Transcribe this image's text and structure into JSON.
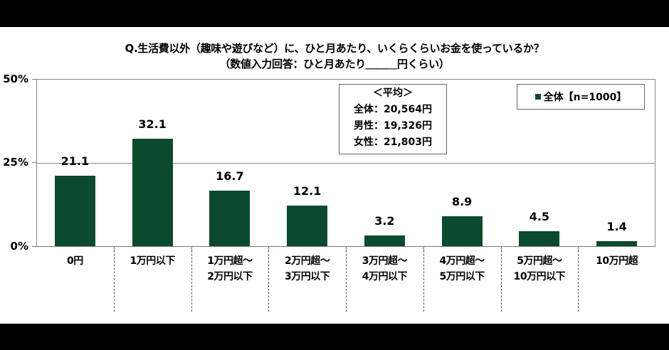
{
  "title": {
    "line1": "Q.生活費以外（趣味や遊びなど）に、ひと月あたり、いくらくらいお金を使っているか？",
    "line2": "（数値入力回答：ひと月あたり＿＿＿円くらい）"
  },
  "y_axis": {
    "ticks": [
      "50%",
      "25%",
      "0%"
    ]
  },
  "average_box": {
    "heading": "＜平均＞",
    "lines": [
      "全体：20,564円",
      "男性：19,326円",
      "女性：21,803円"
    ]
  },
  "legend": {
    "label": "全体【n=1000】",
    "color": "#0b4a2c"
  },
  "categories": [
    {
      "line1": "0円",
      "line2": "",
      "value": "21.1"
    },
    {
      "line1": "1万円以下",
      "line2": "",
      "value": "32.1"
    },
    {
      "line1": "1万円超～",
      "line2": "2万円以下",
      "value": "16.7"
    },
    {
      "line1": "2万円超～",
      "line2": "3万円以下",
      "value": "12.1"
    },
    {
      "line1": "3万円超～",
      "line2": "4万円以下",
      "value": "3.2"
    },
    {
      "line1": "4万円超～",
      "line2": "5万円以下",
      "value": "8.9"
    },
    {
      "line1": "5万円超～",
      "line2": "10万円以下",
      "value": "4.5"
    },
    {
      "line1": "10万円超",
      "line2": "",
      "value": "1.4"
    }
  ],
  "chart_data": {
    "type": "bar",
    "title": "Q.生活費以外（趣味や遊びなど）に、ひと月あたり、いくらくらいお金を使っているか？（数値入力回答：ひと月あたり＿＿＿円くらい）",
    "categories": [
      "0円",
      "1万円以下",
      "1万円超～2万円以下",
      "2万円超～3万円以下",
      "3万円超～4万円以下",
      "4万円超～5万円以下",
      "5万円超～10万円以下",
      "10万円超"
    ],
    "series": [
      {
        "name": "全体【n=1000】",
        "values": [
          21.1,
          32.1,
          16.7,
          12.1,
          3.2,
          8.9,
          4.5,
          1.4
        ],
        "color": "#0b4a2c"
      }
    ],
    "xlabel": "",
    "ylabel": "",
    "ylim": [
      0,
      50
    ],
    "yticks": [
      "0%",
      "25%",
      "50%"
    ],
    "grid": true,
    "legend_position": "top-right",
    "annotations": [
      "＜平均＞",
      "全体：20,564円",
      "男性：19,326円",
      "女性：21,803円"
    ]
  }
}
